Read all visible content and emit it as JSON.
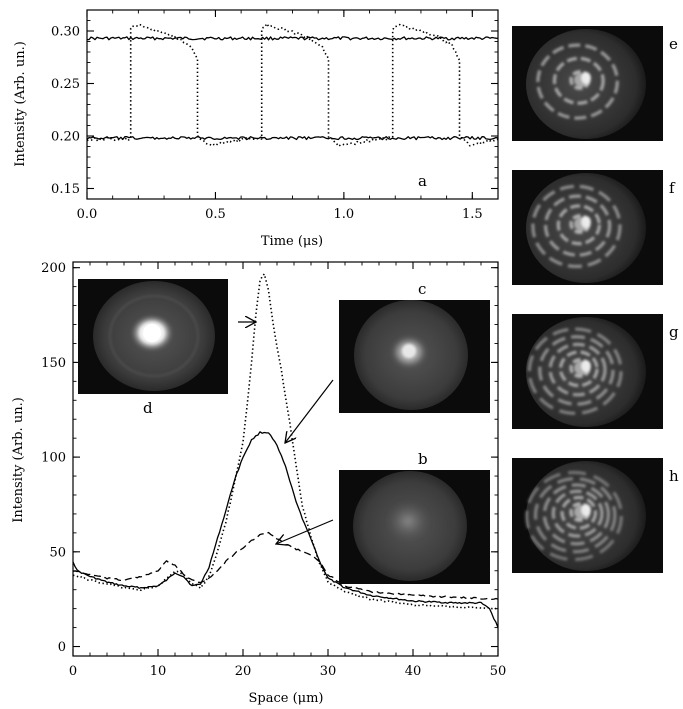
{
  "chart_data": [
    {
      "panel": "a",
      "type": "line",
      "label": "a",
      "xlabel": "Time (μs)",
      "ylabel": "Intensity (Arb. un.)",
      "xlim": [
        0,
        1.6
      ],
      "ylim": [
        0.14,
        0.32
      ],
      "x_ticks": [
        0.0,
        0.5,
        1.0,
        1.5
      ],
      "y_ticks": [
        0.15,
        0.2,
        0.25,
        0.3
      ],
      "x_tick_labels": [
        "0.0",
        "0.5",
        "1.0",
        "1.5"
      ],
      "y_tick_labels": [
        "0.15",
        "0.20",
        "0.25",
        "0.30"
      ],
      "series": [
        {
          "style": "solid",
          "x": [
            0,
            1.6
          ],
          "y": [
            0.293,
            0.293
          ]
        },
        {
          "style": "solid",
          "x": [
            0,
            1.6
          ],
          "y": [
            0.198,
            0.198
          ]
        },
        {
          "style": "dotted",
          "x": [
            0,
            0.17,
            0.17,
            0.19,
            0.25,
            0.33,
            0.4,
            0.43,
            0.43,
            0.47,
            0.55,
            0.62,
            0.68,
            0.68,
            0.7,
            0.76,
            0.84,
            0.91,
            0.94,
            0.94,
            0.98,
            1.06,
            1.13,
            1.19,
            1.19,
            1.21,
            1.27,
            1.35,
            1.42,
            1.45,
            1.45,
            1.49,
            1.56,
            1.6
          ],
          "y": [
            0.197,
            0.197,
            0.302,
            0.306,
            0.302,
            0.296,
            0.287,
            0.273,
            0.2,
            0.191,
            0.194,
            0.197,
            0.198,
            0.302,
            0.306,
            0.302,
            0.296,
            0.287,
            0.273,
            0.2,
            0.191,
            0.194,
            0.197,
            0.198,
            0.302,
            0.306,
            0.302,
            0.296,
            0.287,
            0.273,
            0.2,
            0.191,
            0.195,
            0.197
          ]
        }
      ]
    },
    {
      "panel": "b-d",
      "type": "line",
      "xlabel": "Space (μm)",
      "ylabel": "Intensity (Arb. un.)",
      "xlim": [
        0,
        50
      ],
      "ylim": [
        -5,
        203
      ],
      "x_ticks": [
        0,
        10,
        20,
        30,
        40,
        50
      ],
      "y_ticks": [
        0,
        50,
        100,
        150,
        200
      ],
      "x_tick_labels": [
        "0",
        "10",
        "20",
        "30",
        "40",
        "50"
      ],
      "y_tick_labels": [
        "0",
        "50",
        "100",
        "150",
        "200"
      ],
      "series": [
        {
          "style": "solid",
          "x": [
            0,
            0.5,
            2,
            4,
            6,
            8,
            10,
            11,
            12,
            13,
            14,
            15,
            16,
            17,
            18,
            19,
            20,
            21,
            22,
            23,
            24,
            25,
            26,
            27,
            28,
            29,
            30,
            32,
            35,
            40,
            45,
            48,
            49,
            50
          ],
          "y": [
            45,
            40,
            37,
            34,
            32,
            31,
            32,
            35,
            39,
            37,
            32,
            33,
            42,
            57,
            72,
            88,
            100,
            109,
            113,
            113,
            106,
            95,
            80,
            67,
            57,
            45,
            36,
            31,
            27,
            24,
            23,
            23,
            20,
            10
          ]
        },
        {
          "style": "dashed",
          "x": [
            0,
            2,
            4,
            6,
            8,
            10,
            11,
            12,
            13,
            14,
            15,
            16,
            17,
            18,
            19,
            20,
            21,
            22,
            23,
            24,
            25,
            26,
            27,
            28,
            29,
            30,
            32,
            35,
            40,
            45,
            50
          ],
          "y": [
            40,
            38,
            36,
            35,
            37,
            40,
            45,
            43,
            38,
            35,
            34,
            36,
            40,
            45,
            49,
            52,
            56,
            59,
            60,
            57,
            54,
            52,
            50,
            48,
            45,
            38,
            32,
            29,
            27,
            26,
            25
          ]
        },
        {
          "style": "dotted",
          "x": [
            0,
            2,
            4,
            6,
            8,
            10,
            11,
            12,
            13,
            14,
            15,
            16,
            17,
            18,
            19,
            20,
            20.5,
            21,
            21.5,
            22,
            22.5,
            23,
            23.5,
            24,
            24.5,
            25,
            25.5,
            26,
            26.5,
            27,
            28,
            29,
            30,
            32,
            35,
            40,
            45,
            50
          ],
          "y": [
            38,
            35,
            33,
            31,
            30,
            32,
            36,
            40,
            38,
            33,
            31,
            37,
            50,
            66,
            86,
            108,
            128,
            150,
            175,
            193,
            197,
            188,
            172,
            158,
            146,
            132,
            118,
            103,
            88,
            74,
            58,
            44,
            34,
            29,
            25,
            22,
            21,
            20
          ]
        }
      ],
      "annotations": [
        {
          "label": "d"
        },
        {
          "label": "c"
        },
        {
          "label": "b"
        }
      ]
    }
  ],
  "images": [
    {
      "label": "e",
      "pattern": "speckle-rings",
      "rings": 3
    },
    {
      "label": "f",
      "pattern": "speckle-rings",
      "rings": 4
    },
    {
      "label": "g",
      "pattern": "speckle-rings",
      "rings": 5
    },
    {
      "label": "h",
      "pattern": "speckle-rings",
      "rings": 6
    }
  ],
  "colors": {
    "ink": "#000000",
    "photo_background": "#0b0b0b",
    "photo_disk": "#3a3a3a",
    "photo_spot": "#f4f4f4"
  }
}
